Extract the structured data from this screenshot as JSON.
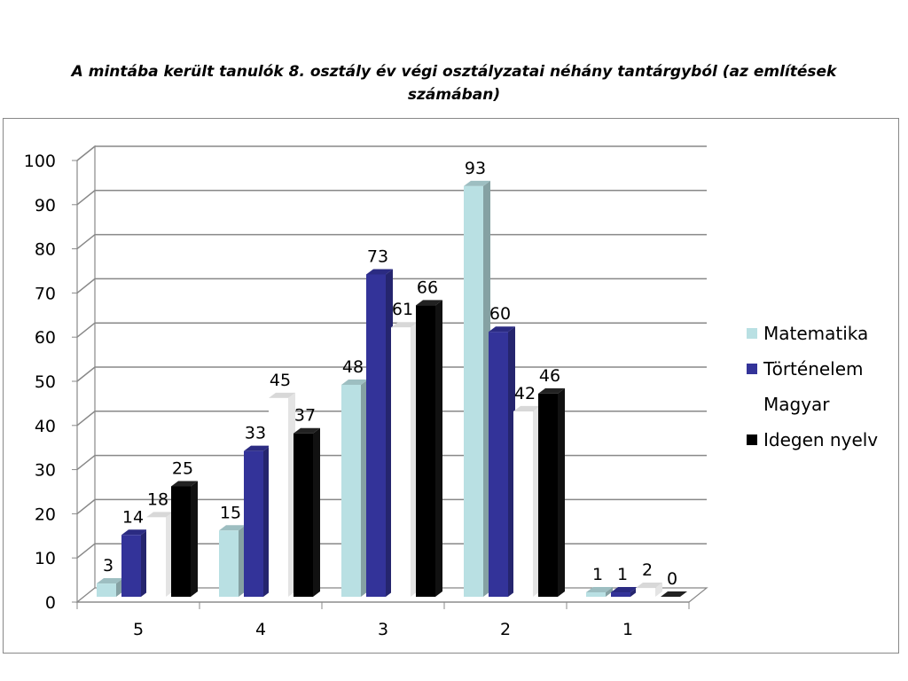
{
  "chart_data": {
    "type": "bar",
    "title": "A mintába került tanulók 8. osztály év végi osztályzatai néhány tantárgyból (az említések számában)",
    "xlabel": "",
    "ylabel": "",
    "ylim": [
      0,
      100
    ],
    "yticks": [
      "0",
      "10",
      "20",
      "30",
      "40",
      "50",
      "60",
      "70",
      "80",
      "90",
      "100"
    ],
    "categories": [
      "5",
      "4",
      "3",
      "2",
      "1"
    ],
    "grid": true,
    "legend_position": "right",
    "series": [
      {
        "name": "Matematika",
        "values": [
          3,
          15,
          48,
          93,
          1
        ],
        "color": "#b9e0e3"
      },
      {
        "name": "Történelem",
        "values": [
          14,
          33,
          73,
          60,
          1
        ],
        "color": "#333399"
      },
      {
        "name": "Magyar",
        "values": [
          18,
          45,
          61,
          42,
          2
        ],
        "color": "#ffffff"
      },
      {
        "name": "Idegen nyelv",
        "values": [
          25,
          37,
          66,
          46,
          0
        ],
        "color": "#000000"
      }
    ]
  }
}
